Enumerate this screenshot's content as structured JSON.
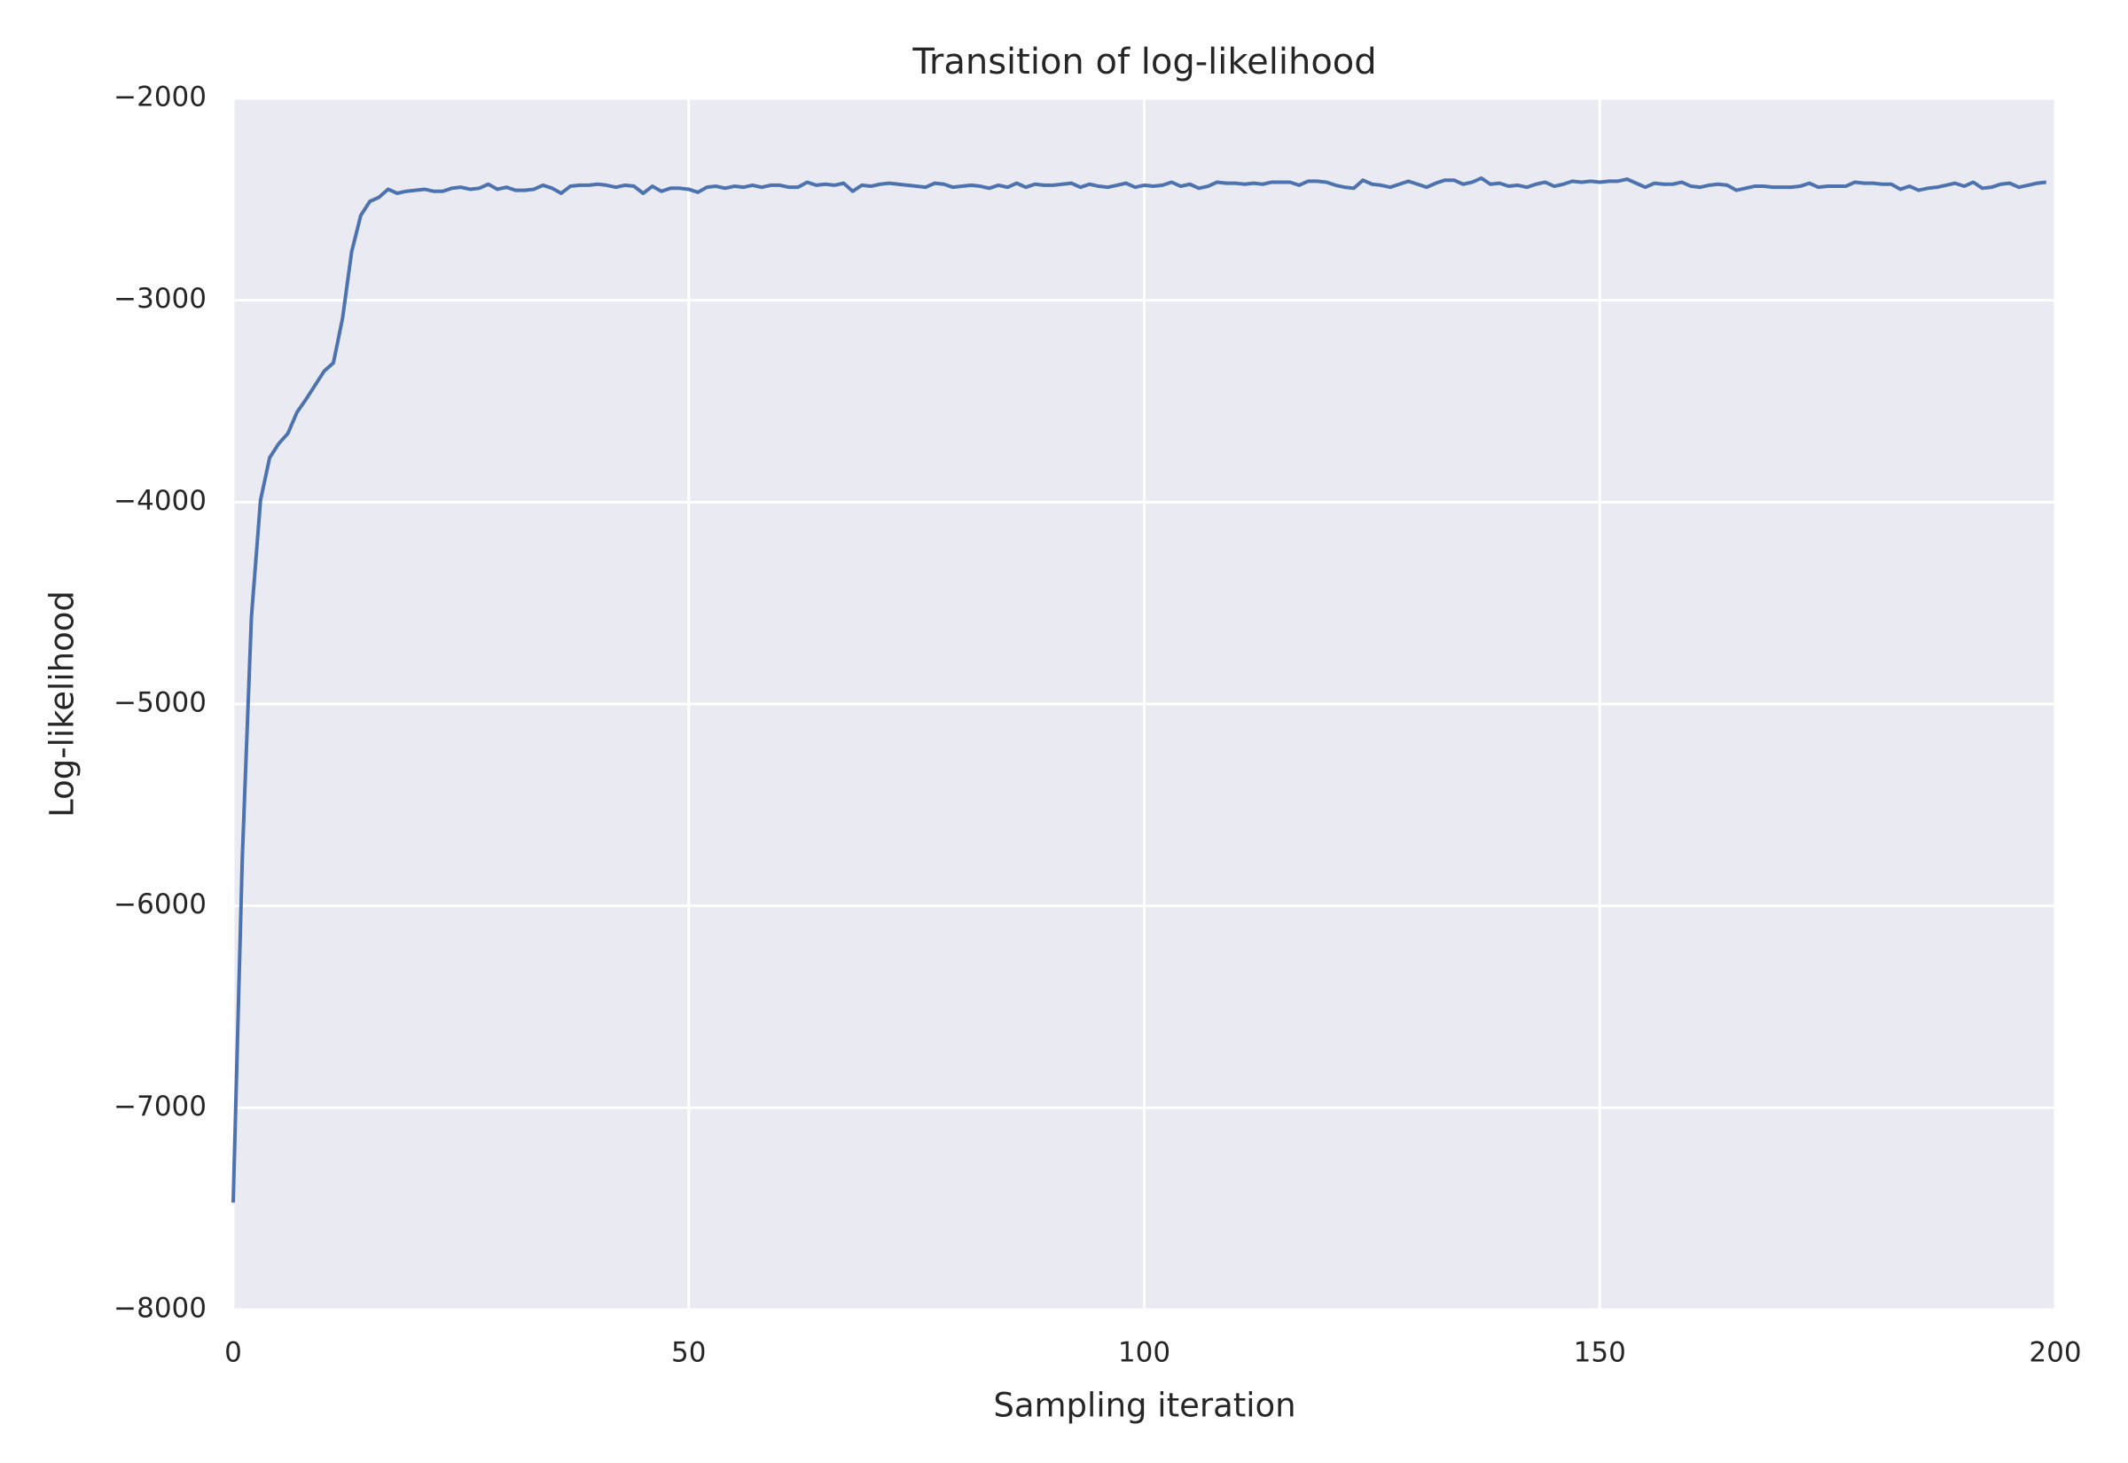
{
  "chart_data": {
    "type": "line",
    "title": "Transition of log-likelihood",
    "x_label": "Sampling iteration",
    "y_label": "Log-likelihood",
    "x": [
      0,
      1,
      2,
      3,
      4,
      5,
      6,
      7,
      8,
      9,
      10,
      11,
      12,
      13,
      14,
      15,
      16,
      17,
      18,
      19,
      20,
      21,
      22,
      23,
      24,
      25,
      26,
      27,
      28,
      29,
      30,
      31,
      32,
      33,
      34,
      35,
      36,
      37,
      38,
      39,
      40,
      41,
      42,
      43,
      44,
      45,
      46,
      47,
      48,
      49,
      50,
      51,
      52,
      53,
      54,
      55,
      56,
      57,
      58,
      59,
      60,
      61,
      62,
      63,
      64,
      65,
      66,
      67,
      68,
      69,
      70,
      71,
      72,
      73,
      74,
      75,
      76,
      77,
      78,
      79,
      80,
      81,
      82,
      83,
      84,
      85,
      86,
      87,
      88,
      89,
      90,
      91,
      92,
      93,
      94,
      95,
      96,
      97,
      98,
      99,
      100,
      101,
      102,
      103,
      104,
      105,
      106,
      107,
      108,
      109,
      110,
      111,
      112,
      113,
      114,
      115,
      116,
      117,
      118,
      119,
      120,
      121,
      122,
      123,
      124,
      125,
      126,
      127,
      128,
      129,
      130,
      131,
      132,
      133,
      134,
      135,
      136,
      137,
      138,
      139,
      140,
      141,
      142,
      143,
      144,
      145,
      146,
      147,
      148,
      149,
      150,
      151,
      152,
      153,
      154,
      155,
      156,
      157,
      158,
      159,
      160,
      161,
      162,
      163,
      164,
      165,
      166,
      167,
      168,
      169,
      170,
      171,
      172,
      173,
      174,
      175,
      176,
      177,
      178,
      179,
      180,
      181,
      182,
      183,
      184,
      185,
      186,
      187,
      188,
      189,
      190,
      191,
      192,
      193,
      194,
      195,
      196,
      197,
      198,
      199
    ],
    "series": [
      {
        "name": "log-likelihood",
        "color": "#4c72b0",
        "values": [
          -7470,
          -5760,
          -4570,
          -3990,
          -3780,
          -3710,
          -3660,
          -3555,
          -3490,
          -3420,
          -3350,
          -3310,
          -3090,
          -2760,
          -2580,
          -2510,
          -2490,
          -2450,
          -2470,
          -2460,
          -2455,
          -2450,
          -2460,
          -2460,
          -2445,
          -2440,
          -2450,
          -2445,
          -2425,
          -2450,
          -2440,
          -2455,
          -2455,
          -2450,
          -2430,
          -2445,
          -2470,
          -2435,
          -2430,
          -2430,
          -2425,
          -2430,
          -2440,
          -2430,
          -2435,
          -2470,
          -2435,
          -2460,
          -2445,
          -2445,
          -2450,
          -2465,
          -2440,
          -2435,
          -2445,
          -2435,
          -2440,
          -2430,
          -2440,
          -2430,
          -2430,
          -2440,
          -2440,
          -2415,
          -2430,
          -2425,
          -2430,
          -2420,
          -2460,
          -2430,
          -2435,
          -2425,
          -2420,
          -2425,
          -2430,
          -2435,
          -2440,
          -2420,
          -2425,
          -2440,
          -2435,
          -2430,
          -2435,
          -2445,
          -2430,
          -2440,
          -2420,
          -2440,
          -2425,
          -2430,
          -2430,
          -2425,
          -2420,
          -2440,
          -2425,
          -2435,
          -2440,
          -2430,
          -2420,
          -2440,
          -2430,
          -2435,
          -2430,
          -2415,
          -2435,
          -2425,
          -2445,
          -2435,
          -2415,
          -2420,
          -2420,
          -2425,
          -2420,
          -2425,
          -2415,
          -2415,
          -2415,
          -2430,
          -2410,
          -2410,
          -2415,
          -2430,
          -2440,
          -2445,
          -2405,
          -2425,
          -2430,
          -2440,
          -2425,
          -2410,
          -2425,
          -2440,
          -2420,
          -2405,
          -2405,
          -2425,
          -2415,
          -2395,
          -2425,
          -2420,
          -2435,
          -2430,
          -2440,
          -2425,
          -2415,
          -2435,
          -2425,
          -2410,
          -2415,
          -2410,
          -2415,
          -2410,
          -2410,
          -2400,
          -2420,
          -2440,
          -2420,
          -2425,
          -2425,
          -2415,
          -2435,
          -2440,
          -2430,
          -2425,
          -2430,
          -2455,
          -2445,
          -2435,
          -2435,
          -2440,
          -2440,
          -2440,
          -2435,
          -2420,
          -2440,
          -2435,
          -2435,
          -2435,
          -2415,
          -2420,
          -2420,
          -2425,
          -2425,
          -2450,
          -2435,
          -2455,
          -2445,
          -2440,
          -2430,
          -2420,
          -2435,
          -2415,
          -2445,
          -2440,
          -2425,
          -2420,
          -2440,
          -2430,
          -2420,
          -2415
        ]
      }
    ],
    "xlim": [
      0,
      200
    ],
    "xticks": [
      0,
      50,
      100,
      150,
      200
    ],
    "ylim": [
      -8000,
      -2000
    ],
    "yticks": [
      {
        "value": -8000,
        "label": "−8000"
      },
      {
        "value": -7000,
        "label": "−7000"
      },
      {
        "value": -6000,
        "label": "−6000"
      },
      {
        "value": -5000,
        "label": "−5000"
      },
      {
        "value": -4000,
        "label": "−4000"
      },
      {
        "value": -3000,
        "label": "−3000"
      },
      {
        "value": -2000,
        "label": "−2000"
      }
    ],
    "grid": true
  }
}
